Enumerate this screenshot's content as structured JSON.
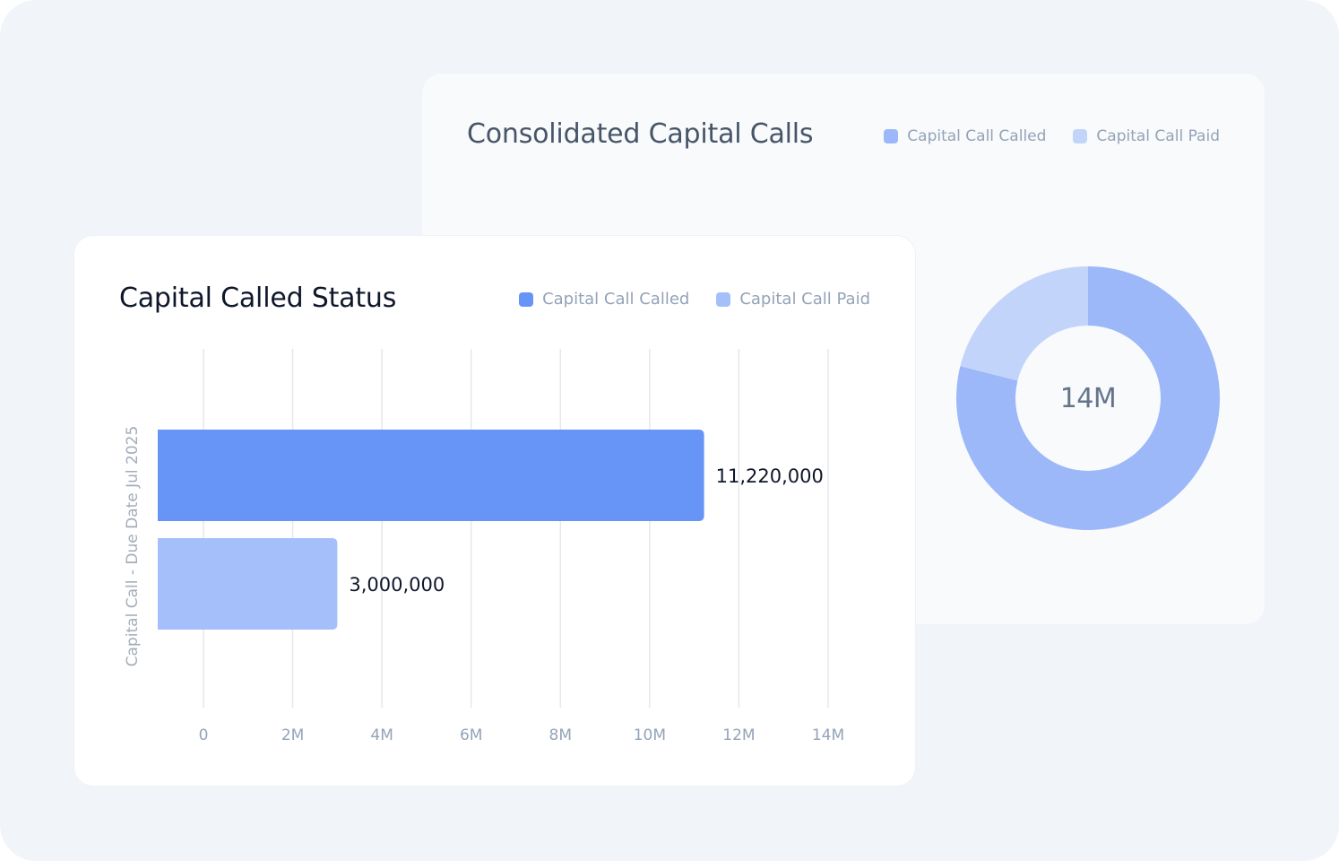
{
  "colors": {
    "called": "#6694f7",
    "paid": "#a4bffa",
    "donut_called": "#9cb8f9",
    "donut_paid": "#c3d4fb",
    "grid": "#e5e7eb",
    "tick": "#94a3b8"
  },
  "consolidated": {
    "title": "Consolidated Capital Calls",
    "legend": [
      "Capital Call Called",
      "Capital Call Paid"
    ],
    "center_label": "14M"
  },
  "status": {
    "title": "Capital Called Status",
    "legend": [
      "Capital Call Called",
      "Capital Call Paid"
    ]
  },
  "chart_data": [
    {
      "type": "bar",
      "orientation": "horizontal",
      "title": "Capital Called Status",
      "categories": [
        "Capital Call - Due Date Jul 2025"
      ],
      "ylabel": "Capital Call - Due Date Jul 2025",
      "xlabel": "",
      "series": [
        {
          "name": "Capital Call Called",
          "values": [
            11220000
          ],
          "label": "11,220,000"
        },
        {
          "name": "Capital Call Paid",
          "values": [
            3000000
          ],
          "label": "3,000,000"
        }
      ],
      "xlim": [
        0,
        14000000
      ],
      "xticks": [
        0,
        2000000,
        4000000,
        6000000,
        8000000,
        10000000,
        12000000,
        14000000
      ],
      "xtick_labels": [
        "0",
        "2M",
        "4M",
        "6M",
        "8M",
        "10M",
        "12M",
        "14M"
      ],
      "grid": true,
      "legend": "top-right"
    },
    {
      "type": "pie",
      "variant": "donut",
      "title": "Consolidated Capital Calls",
      "labels": [
        "Capital Call Called",
        "Capital Call Paid"
      ],
      "values": [
        11220000,
        3000000
      ],
      "center_label": "14M",
      "legend": "top-right"
    }
  ]
}
